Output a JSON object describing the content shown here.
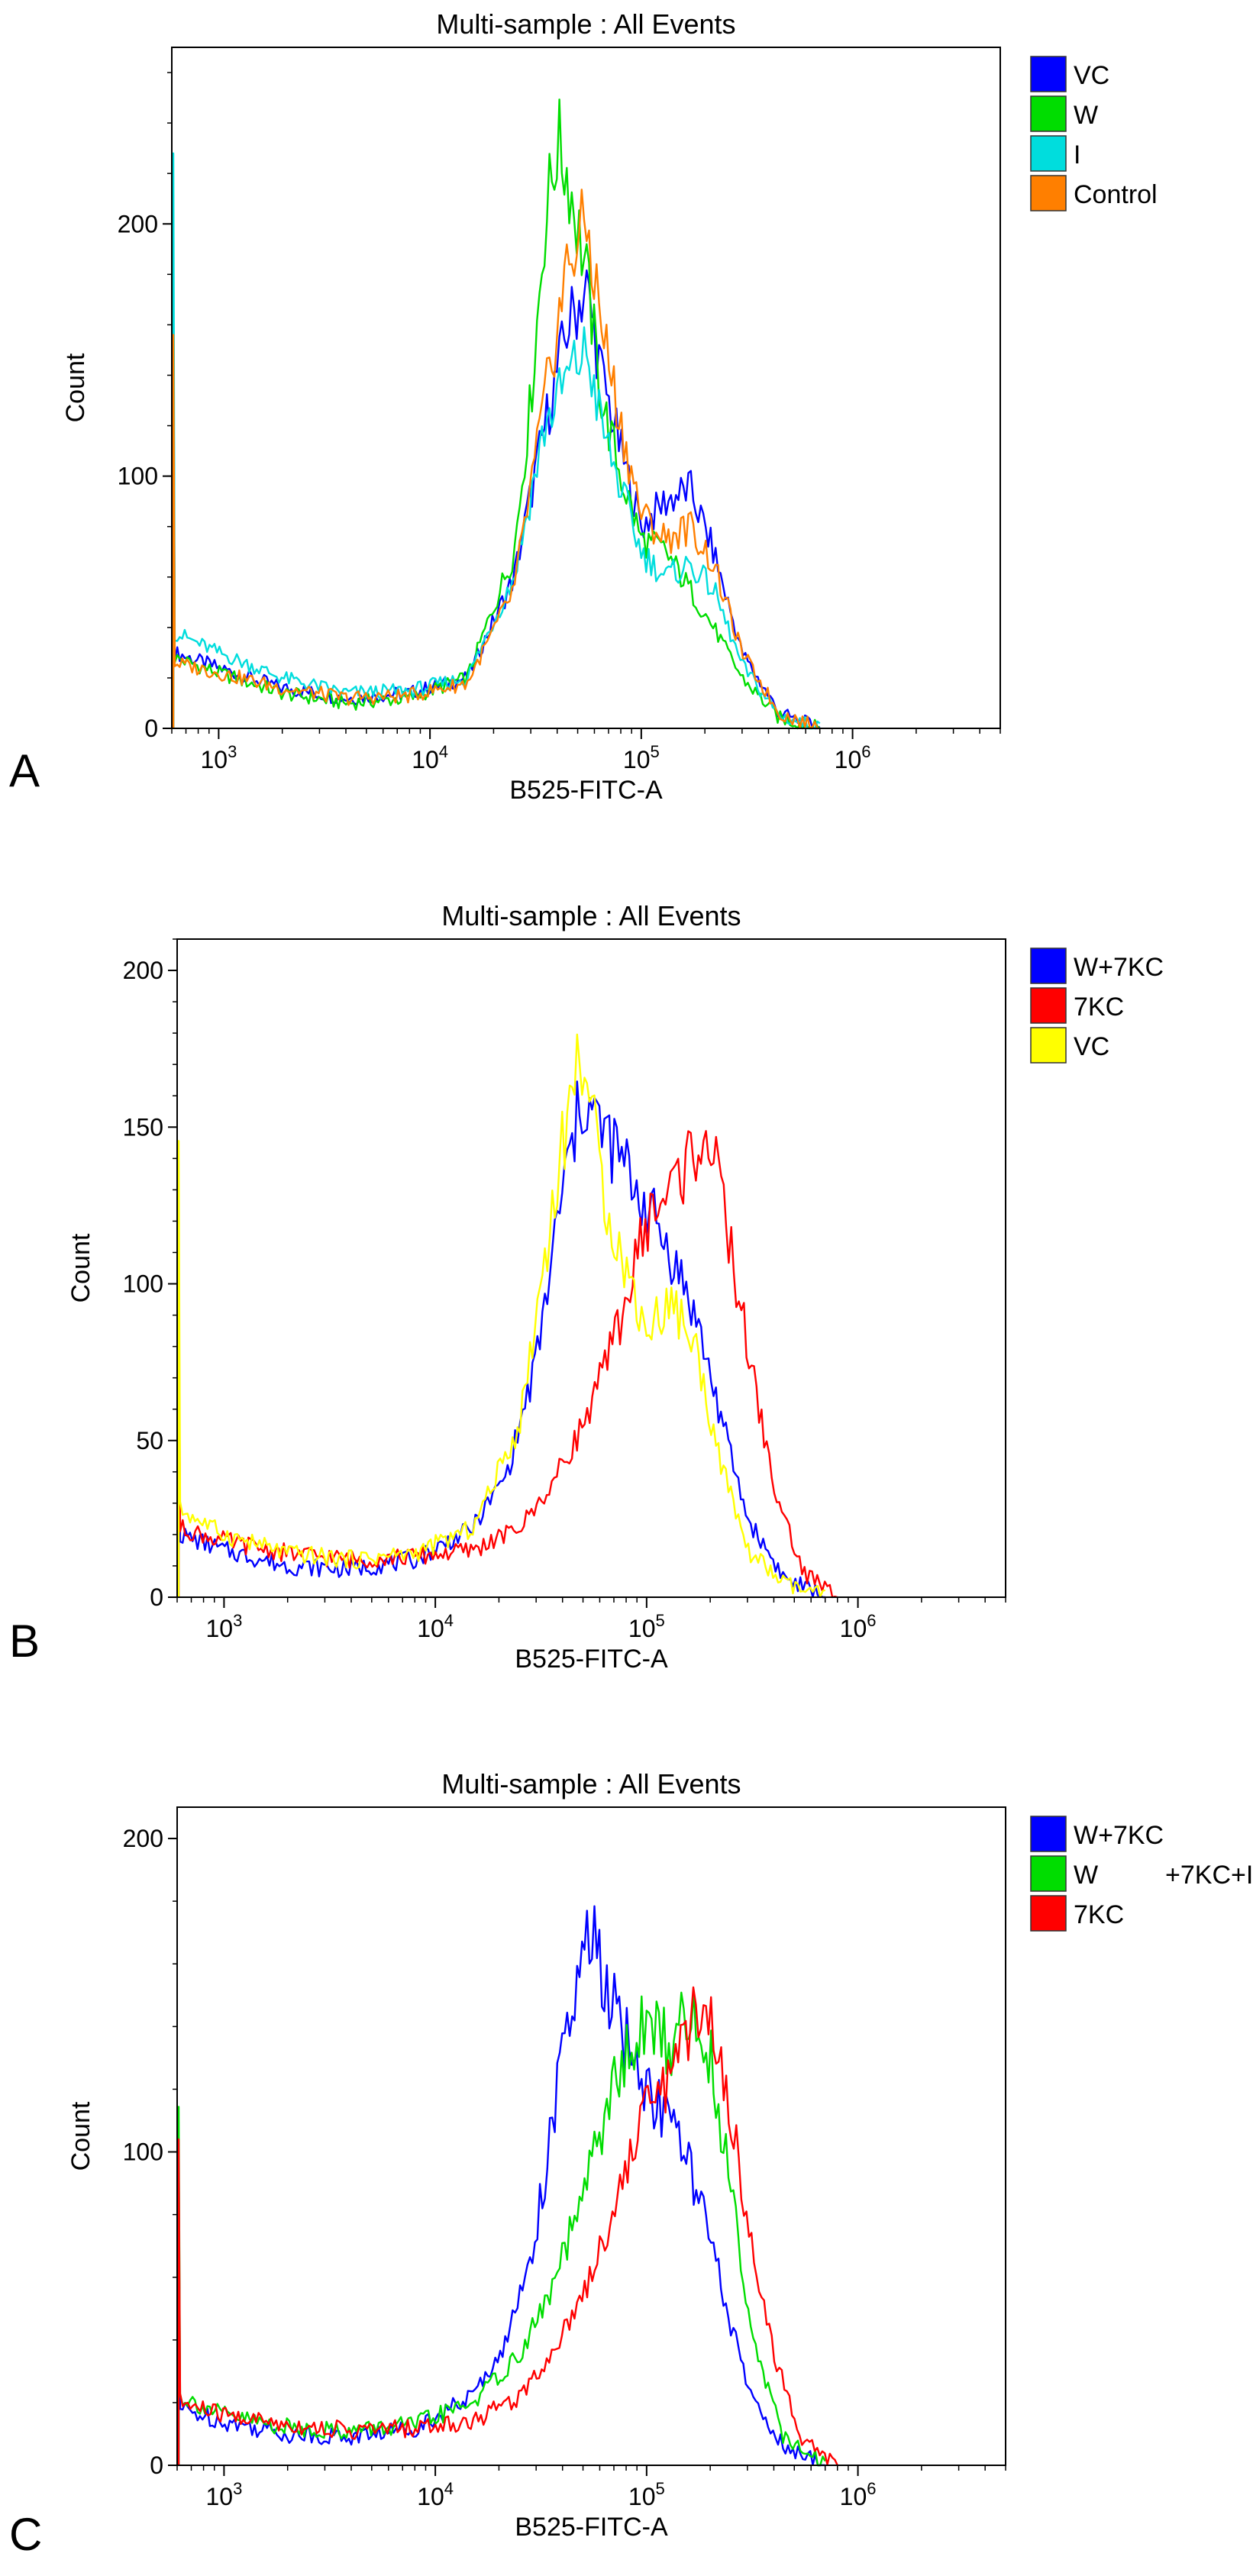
{
  "chart_data": [
    {
      "type": "line",
      "panel_label": "A",
      "title": "Multi-sample : All Events",
      "xlabel": "B525-FITC-A",
      "ylabel": "Count",
      "xscale": "log",
      "xlim": [
        600,
        5000000
      ],
      "ylim": [
        0,
        270
      ],
      "xticks": [
        {
          "value": 1000,
          "base": "10",
          "exp": "3"
        },
        {
          "value": 10000,
          "base": "10",
          "exp": "4"
        },
        {
          "value": 100000,
          "base": "10",
          "exp": "5"
        },
        {
          "value": 1000000,
          "base": "10",
          "exp": "6"
        }
      ],
      "yticks": [
        0,
        100,
        200
      ],
      "legend": "top-right",
      "series": [
        {
          "name": "VC",
          "color": "#0000ff",
          "x": [
            620,
            1000,
            2000,
            4000,
            8000,
            15000,
            25000,
            35000,
            45000,
            55000,
            65000,
            80000,
            100000,
            130000,
            170000,
            220000,
            300000,
            450000,
            700000
          ],
          "y": [
            30,
            24,
            16,
            12,
            14,
            20,
            60,
            120,
            160,
            175,
            140,
            110,
            80,
            90,
            95,
            70,
            30,
            6,
            0
          ]
        },
        {
          "name": "W",
          "color": "#00dd00",
          "x": [
            620,
            1000,
            2000,
            4000,
            8000,
            15000,
            25000,
            30000,
            35000,
            40000,
            45000,
            55000,
            65000,
            80000,
            100000,
            130000,
            170000,
            220000,
            300000,
            450000,
            700000
          ],
          "y": [
            28,
            22,
            14,
            10,
            12,
            20,
            70,
            130,
            200,
            232,
            220,
            180,
            130,
            100,
            75,
            70,
            55,
            40,
            20,
            4,
            0
          ]
        },
        {
          "name": "I",
          "color": "#00dddd",
          "x": [
            620,
            1000,
            2000,
            4000,
            8000,
            15000,
            25000,
            35000,
            45000,
            55000,
            65000,
            80000,
            100000,
            130000,
            170000,
            220000,
            300000,
            450000,
            700000
          ],
          "y": [
            38,
            30,
            20,
            14,
            15,
            20,
            60,
            120,
            140,
            150,
            120,
            95,
            70,
            60,
            65,
            55,
            25,
            5,
            0
          ]
        },
        {
          "name": "Control",
          "color": "#ff7f00",
          "x": [
            620,
            1000,
            2000,
            4000,
            8000,
            15000,
            25000,
            35000,
            45000,
            55000,
            65000,
            80000,
            100000,
            130000,
            170000,
            220000,
            300000,
            450000,
            700000
          ],
          "y": [
            26,
            22,
            16,
            12,
            13,
            18,
            55,
            130,
            185,
            200,
            160,
            120,
            85,
            75,
            80,
            65,
            30,
            6,
            0
          ]
        }
      ]
    },
    {
      "type": "line",
      "panel_label": "B",
      "title": "Multi-sample : All Events",
      "xlabel": "B525-FITC-A",
      "ylabel": "Count",
      "xscale": "log",
      "xlim": [
        600,
        5000000
      ],
      "ylim": [
        0,
        210
      ],
      "xticks": [
        {
          "value": 1000,
          "base": "10",
          "exp": "3"
        },
        {
          "value": 10000,
          "base": "10",
          "exp": "4"
        },
        {
          "value": 100000,
          "base": "10",
          "exp": "5"
        },
        {
          "value": 1000000,
          "base": "10",
          "exp": "6"
        }
      ],
      "yticks": [
        0,
        50,
        100,
        150,
        200
      ],
      "legend": "top-right",
      "series": [
        {
          "name": "W+7KC",
          "color": "#0000ff",
          "x": [
            620,
            1000,
            2000,
            4000,
            8000,
            15000,
            22000,
            30000,
            40000,
            50000,
            60000,
            75000,
            100000,
            130000,
            170000,
            220000,
            300000,
            450000,
            700000
          ],
          "y": [
            20,
            15,
            10,
            9,
            12,
            22,
            40,
            75,
            130,
            160,
            150,
            140,
            125,
            110,
            90,
            60,
            25,
            6,
            0
          ]
        },
        {
          "name": "7KC",
          "color": "#ff0000",
          "x": [
            620,
            1000,
            2000,
            4000,
            8000,
            15000,
            25000,
            35000,
            50000,
            65000,
            80000,
            100000,
            130000,
            160000,
            190000,
            230000,
            300000,
            400000,
            550000,
            800000
          ],
          "y": [
            22,
            18,
            14,
            12,
            13,
            15,
            22,
            35,
            55,
            75,
            95,
            120,
            130,
            140,
            150,
            125,
            80,
            35,
            8,
            0
          ]
        },
        {
          "name": "VC",
          "color": "#ffff00",
          "x": [
            620,
            1000,
            2000,
            4000,
            8000,
            15000,
            25000,
            35000,
            45000,
            50000,
            60000,
            75000,
            100000,
            130000,
            170000,
            220000,
            300000,
            450000,
            700000
          ],
          "y": [
            28,
            20,
            14,
            12,
            14,
            22,
            55,
            120,
            165,
            175,
            135,
            110,
            85,
            95,
            80,
            45,
            15,
            4,
            0
          ]
        }
      ]
    },
    {
      "type": "line",
      "panel_label": "C",
      "title": "Multi-sample : All Events",
      "xlabel": "B525-FITC-A",
      "ylabel": "Count",
      "xscale": "log",
      "xlim": [
        600,
        5000000
      ],
      "ylim": [
        0,
        210
      ],
      "xticks": [
        {
          "value": 1000,
          "base": "10",
          "exp": "3"
        },
        {
          "value": 10000,
          "base": "10",
          "exp": "4"
        },
        {
          "value": 100000,
          "base": "10",
          "exp": "5"
        },
        {
          "value": 1000000,
          "base": "10",
          "exp": "6"
        }
      ],
      "yticks": [
        0,
        100,
        200
      ],
      "legend": "top-right",
      "legend_labels": [
        {
          "name": "W+7KC",
          "color": "#0000ff"
        },
        {
          "name": "W",
          "suffix": "+7KC+I",
          "color": "#00dd00"
        },
        {
          "name": "7KC",
          "color": "#ff0000"
        }
      ],
      "series": [
        {
          "name": "W+7KC",
          "color": "#0000ff",
          "x": [
            620,
            1000,
            2000,
            4000,
            8000,
            15000,
            22000,
            30000,
            40000,
            50000,
            55000,
            65000,
            80000,
            100000,
            130000,
            170000,
            220000,
            300000,
            450000,
            700000
          ],
          "y": [
            18,
            14,
            10,
            9,
            12,
            22,
            40,
            75,
            130,
            160,
            170,
            150,
            135,
            120,
            110,
            90,
            60,
            25,
            5,
            0
          ]
        },
        {
          "name": "W+7KC+I",
          "color": "#00dd00",
          "x": [
            620,
            1000,
            2000,
            4000,
            8000,
            15000,
            25000,
            35000,
            50000,
            65000,
            80000,
            100000,
            130000,
            160000,
            200000,
            250000,
            320000,
            450000,
            700000
          ],
          "y": [
            22,
            16,
            12,
            11,
            13,
            20,
            35,
            55,
            85,
            115,
            130,
            140,
            135,
            145,
            130,
            90,
            40,
            8,
            0
          ]
        },
        {
          "name": "7KC",
          "color": "#ff0000",
          "x": [
            620,
            1000,
            2000,
            4000,
            8000,
            15000,
            25000,
            35000,
            50000,
            65000,
            80000,
            100000,
            130000,
            160000,
            190000,
            230000,
            300000,
            400000,
            550000,
            800000
          ],
          "y": [
            20,
            16,
            13,
            11,
            12,
            14,
            22,
            35,
            55,
            75,
            95,
            115,
            125,
            140,
            150,
            125,
            80,
            35,
            8,
            0
          ]
        }
      ]
    }
  ]
}
